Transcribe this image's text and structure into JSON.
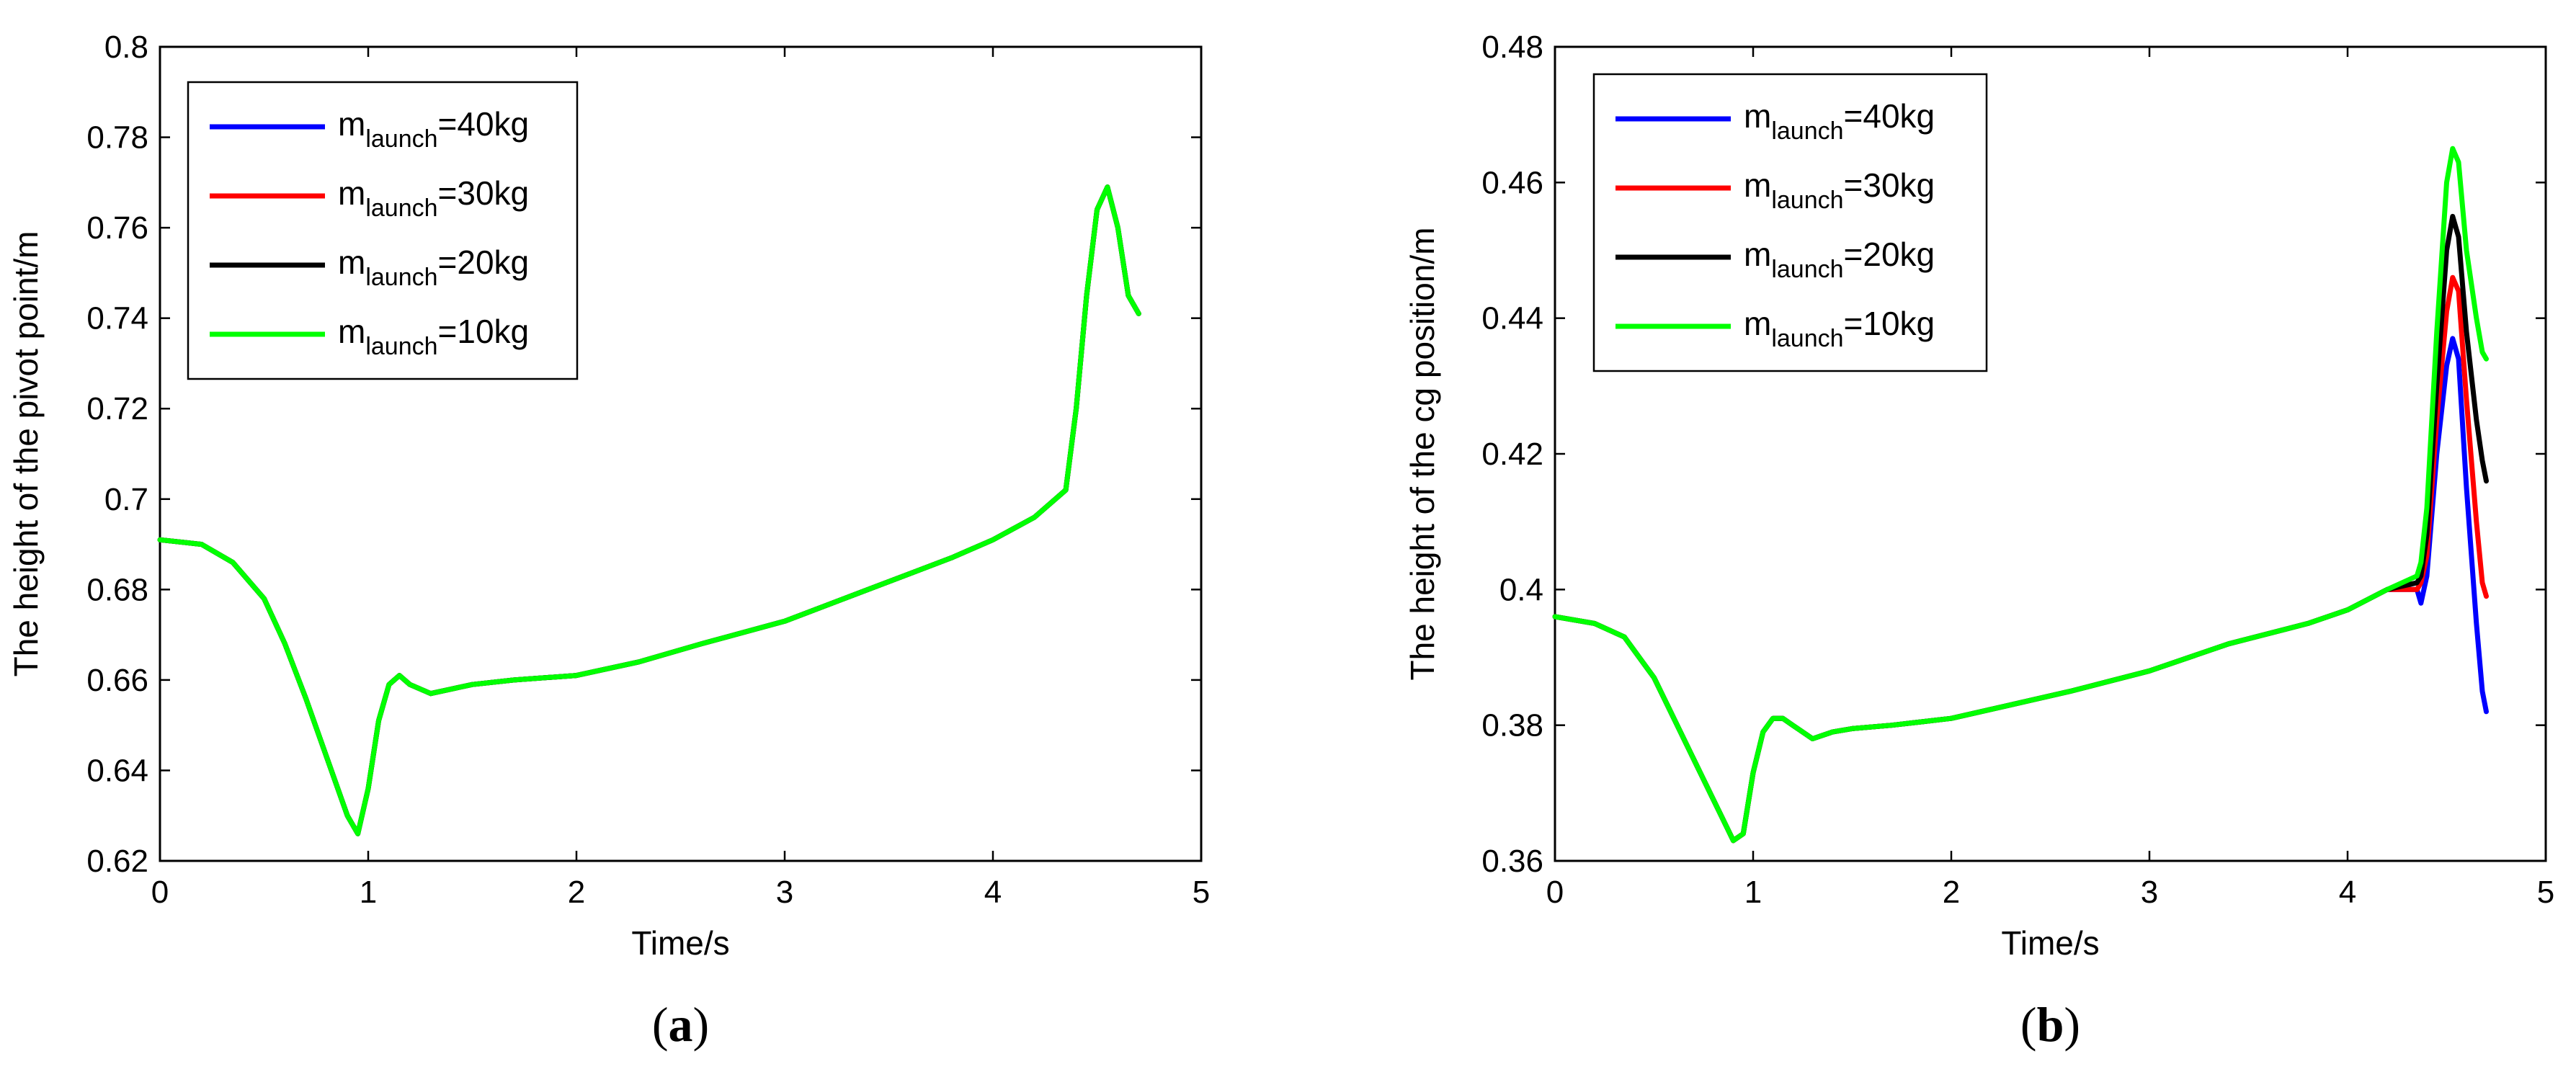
{
  "chart_data": [
    {
      "type": "line",
      "panel_label": "a",
      "xlabel": "Time/s",
      "ylabel": "The height of the pivot point/m",
      "xlim": [
        0,
        5
      ],
      "ylim": [
        0.62,
        0.8
      ],
      "xticks": [
        "0",
        "1",
        "2",
        "3",
        "4",
        "5"
      ],
      "yticks": [
        "0.62",
        "0.64",
        "0.66",
        "0.68",
        "0.7",
        "0.72",
        "0.74",
        "0.76",
        "0.78",
        "0.8"
      ],
      "grid": false,
      "legend_position": "top-left",
      "series": [
        {
          "name": "m_launch=40kg",
          "legend_base": "m",
          "legend_sub": "launch",
          "legend_rest": "=40kg",
          "color": "#0000ff",
          "x": [
            0,
            0.2,
            0.35,
            0.5,
            0.6,
            0.7,
            0.8,
            0.9,
            0.95,
            1.0,
            1.05,
            1.1,
            1.15,
            1.2,
            1.3,
            1.4,
            1.5,
            1.7,
            2.0,
            2.3,
            2.6,
            3.0,
            3.4,
            3.8,
            4.0,
            4.2,
            4.35,
            4.4,
            4.45,
            4.5,
            4.55,
            4.6,
            4.65,
            4.7
          ],
          "y": [
            0.691,
            0.69,
            0.686,
            0.678,
            0.668,
            0.656,
            0.643,
            0.63,
            0.626,
            0.636,
            0.651,
            0.659,
            0.661,
            0.659,
            0.657,
            0.658,
            0.659,
            0.66,
            0.661,
            0.664,
            0.668,
            0.673,
            0.68,
            0.687,
            0.691,
            0.696,
            0.702,
            0.72,
            0.745,
            0.764,
            0.769,
            0.76,
            0.745,
            0.741
          ]
        },
        {
          "name": "m_launch=30kg",
          "legend_base": "m",
          "legend_sub": "launch",
          "legend_rest": "=30kg",
          "color": "#ff0000",
          "x": [
            0,
            0.2,
            0.35,
            0.5,
            0.6,
            0.7,
            0.8,
            0.9,
            0.95,
            1.0,
            1.05,
            1.1,
            1.15,
            1.2,
            1.3,
            1.4,
            1.5,
            1.7,
            2.0,
            2.3,
            2.6,
            3.0,
            3.4,
            3.8,
            4.0,
            4.2,
            4.35,
            4.4,
            4.45,
            4.5,
            4.55,
            4.6,
            4.65,
            4.7
          ],
          "y": [
            0.691,
            0.69,
            0.686,
            0.678,
            0.668,
            0.656,
            0.643,
            0.63,
            0.626,
            0.636,
            0.651,
            0.659,
            0.661,
            0.659,
            0.657,
            0.658,
            0.659,
            0.66,
            0.661,
            0.664,
            0.668,
            0.673,
            0.68,
            0.687,
            0.691,
            0.696,
            0.702,
            0.72,
            0.745,
            0.764,
            0.769,
            0.76,
            0.745,
            0.741
          ]
        },
        {
          "name": "m_launch=20kg",
          "legend_base": "m",
          "legend_sub": "launch",
          "legend_rest": "=20kg",
          "color": "#000000",
          "x": [
            0,
            0.2,
            0.35,
            0.5,
            0.6,
            0.7,
            0.8,
            0.9,
            0.95,
            1.0,
            1.05,
            1.1,
            1.15,
            1.2,
            1.3,
            1.4,
            1.5,
            1.7,
            2.0,
            2.3,
            2.6,
            3.0,
            3.4,
            3.8,
            4.0,
            4.2,
            4.35,
            4.4,
            4.45,
            4.5,
            4.55,
            4.6,
            4.65,
            4.7
          ],
          "y": [
            0.691,
            0.69,
            0.686,
            0.678,
            0.668,
            0.656,
            0.643,
            0.63,
            0.626,
            0.636,
            0.651,
            0.659,
            0.661,
            0.659,
            0.657,
            0.658,
            0.659,
            0.66,
            0.661,
            0.664,
            0.668,
            0.673,
            0.68,
            0.687,
            0.691,
            0.696,
            0.702,
            0.72,
            0.745,
            0.764,
            0.769,
            0.76,
            0.745,
            0.741
          ]
        },
        {
          "name": "m_launch=10kg",
          "legend_base": "m",
          "legend_sub": "launch",
          "legend_rest": "=10kg",
          "color": "#00ff00",
          "x": [
            0,
            0.2,
            0.35,
            0.5,
            0.6,
            0.7,
            0.8,
            0.9,
            0.95,
            1.0,
            1.05,
            1.1,
            1.15,
            1.2,
            1.3,
            1.4,
            1.5,
            1.7,
            2.0,
            2.3,
            2.6,
            3.0,
            3.4,
            3.8,
            4.0,
            4.2,
            4.35,
            4.4,
            4.45,
            4.5,
            4.55,
            4.6,
            4.65,
            4.7
          ],
          "y": [
            0.691,
            0.69,
            0.686,
            0.678,
            0.668,
            0.656,
            0.643,
            0.63,
            0.626,
            0.636,
            0.651,
            0.659,
            0.661,
            0.659,
            0.657,
            0.658,
            0.659,
            0.66,
            0.661,
            0.664,
            0.668,
            0.673,
            0.68,
            0.687,
            0.691,
            0.696,
            0.702,
            0.72,
            0.745,
            0.764,
            0.769,
            0.76,
            0.745,
            0.741
          ]
        }
      ]
    },
    {
      "type": "line",
      "panel_label": "b",
      "xlabel": "Time/s",
      "ylabel": "The height of the cg position/m",
      "xlim": [
        0,
        5
      ],
      "ylim": [
        0.36,
        0.48
      ],
      "xticks": [
        "0",
        "1",
        "2",
        "3",
        "4",
        "5"
      ],
      "yticks": [
        "0.36",
        "0.38",
        "0.4",
        "0.42",
        "0.44",
        "0.46",
        "0.48"
      ],
      "grid": false,
      "legend_position": "top-left",
      "series": [
        {
          "name": "m_launch=40kg",
          "legend_base": "m",
          "legend_sub": "launch",
          "legend_rest": "=40kg",
          "color": "#0000ff",
          "x": [
            0,
            0.2,
            0.35,
            0.5,
            0.6,
            0.7,
            0.8,
            0.9,
            0.95,
            1.0,
            1.05,
            1.1,
            1.15,
            1.2,
            1.3,
            1.4,
            1.5,
            1.7,
            2.0,
            2.3,
            2.6,
            3.0,
            3.4,
            3.8,
            4.0,
            4.2,
            4.35,
            4.37,
            4.4,
            4.45,
            4.5,
            4.53,
            4.56,
            4.6,
            4.65,
            4.68,
            4.7
          ],
          "y": [
            0.396,
            0.395,
            0.393,
            0.387,
            0.381,
            0.375,
            0.369,
            0.363,
            0.364,
            0.373,
            0.379,
            0.381,
            0.381,
            0.38,
            0.378,
            0.379,
            0.3795,
            0.38,
            0.381,
            0.383,
            0.385,
            0.388,
            0.392,
            0.395,
            0.397,
            0.4,
            0.4,
            0.398,
            0.402,
            0.42,
            0.433,
            0.437,
            0.434,
            0.415,
            0.395,
            0.385,
            0.382
          ]
        },
        {
          "name": "m_launch=30kg",
          "legend_base": "m",
          "legend_sub": "launch",
          "legend_rest": "=30kg",
          "color": "#ff0000",
          "x": [
            0,
            0.2,
            0.35,
            0.5,
            0.6,
            0.7,
            0.8,
            0.9,
            0.95,
            1.0,
            1.05,
            1.1,
            1.15,
            1.2,
            1.3,
            1.4,
            1.5,
            1.7,
            2.0,
            2.3,
            2.6,
            3.0,
            3.4,
            3.8,
            4.0,
            4.2,
            4.35,
            4.37,
            4.4,
            4.45,
            4.5,
            4.53,
            4.56,
            4.6,
            4.65,
            4.68,
            4.7
          ],
          "y": [
            0.396,
            0.395,
            0.393,
            0.387,
            0.381,
            0.375,
            0.369,
            0.363,
            0.364,
            0.373,
            0.379,
            0.381,
            0.381,
            0.38,
            0.378,
            0.379,
            0.3795,
            0.38,
            0.381,
            0.383,
            0.385,
            0.388,
            0.392,
            0.395,
            0.397,
            0.4,
            0.4,
            0.401,
            0.405,
            0.425,
            0.441,
            0.446,
            0.444,
            0.428,
            0.41,
            0.401,
            0.399
          ]
        },
        {
          "name": "m_launch=20kg",
          "legend_base": "m",
          "legend_sub": "launch",
          "legend_rest": "=20kg",
          "color": "#000000",
          "x": [
            0,
            0.2,
            0.35,
            0.5,
            0.6,
            0.7,
            0.8,
            0.9,
            0.95,
            1.0,
            1.05,
            1.1,
            1.15,
            1.2,
            1.3,
            1.4,
            1.5,
            1.7,
            2.0,
            2.3,
            2.6,
            3.0,
            3.4,
            3.8,
            4.0,
            4.2,
            4.35,
            4.37,
            4.4,
            4.45,
            4.5,
            4.53,
            4.56,
            4.6,
            4.65,
            4.68,
            4.7
          ],
          "y": [
            0.396,
            0.395,
            0.393,
            0.387,
            0.381,
            0.375,
            0.369,
            0.363,
            0.364,
            0.373,
            0.379,
            0.381,
            0.381,
            0.38,
            0.378,
            0.379,
            0.3795,
            0.38,
            0.381,
            0.383,
            0.385,
            0.388,
            0.392,
            0.395,
            0.397,
            0.4,
            0.401,
            0.402,
            0.408,
            0.43,
            0.45,
            0.455,
            0.452,
            0.438,
            0.425,
            0.419,
            0.416
          ]
        },
        {
          "name": "m_launch=10kg",
          "legend_base": "m",
          "legend_sub": "launch",
          "legend_rest": "=10kg",
          "color": "#00ff00",
          "x": [
            0,
            0.2,
            0.35,
            0.5,
            0.6,
            0.7,
            0.8,
            0.9,
            0.95,
            1.0,
            1.05,
            1.1,
            1.15,
            1.2,
            1.3,
            1.4,
            1.5,
            1.7,
            2.0,
            2.3,
            2.6,
            3.0,
            3.4,
            3.8,
            4.0,
            4.2,
            4.35,
            4.37,
            4.4,
            4.45,
            4.5,
            4.53,
            4.56,
            4.6,
            4.65,
            4.68,
            4.7
          ],
          "y": [
            0.396,
            0.395,
            0.393,
            0.387,
            0.381,
            0.375,
            0.369,
            0.363,
            0.364,
            0.373,
            0.379,
            0.381,
            0.381,
            0.38,
            0.378,
            0.379,
            0.3795,
            0.38,
            0.381,
            0.383,
            0.385,
            0.388,
            0.392,
            0.395,
            0.397,
            0.4,
            0.402,
            0.404,
            0.412,
            0.438,
            0.46,
            0.465,
            0.463,
            0.45,
            0.44,
            0.435,
            0.434
          ]
        }
      ]
    }
  ]
}
